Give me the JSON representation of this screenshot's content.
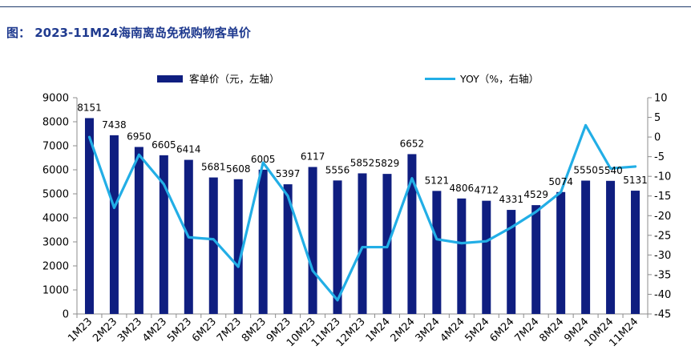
{
  "figure": {
    "title": "图： 2023-11M24海南离岛免税购物客单价"
  },
  "chart_data": {
    "type": "bar",
    "categories": [
      "1M23",
      "2M23",
      "3M23",
      "4M23",
      "5M23",
      "6M23",
      "7M23",
      "8M23",
      "9M23",
      "10M23",
      "11M23",
      "12M23",
      "1M24",
      "2M24",
      "3M24",
      "4M24",
      "5M24",
      "6M24",
      "7M24",
      "8M24",
      "9M24",
      "10M24",
      "11M24"
    ],
    "series": [
      {
        "name": "客单价（元，左轴）",
        "type": "bar",
        "axis": "left",
        "color": "#0f1e80",
        "values": [
          8151,
          7438,
          6950,
          6605,
          6414,
          5681,
          5608,
          6005,
          5397,
          6117,
          5556,
          5852,
          5829,
          6652,
          5121,
          4806,
          4712,
          4331,
          4529,
          5074,
          5550,
          5540,
          5131
        ]
      },
      {
        "name": "YOY（%，右轴）",
        "type": "line",
        "axis": "right",
        "color": "#22aee6",
        "values": [
          0,
          -18,
          -4.5,
          -12,
          -25.5,
          -26,
          -33,
          -6.5,
          -15,
          -34,
          -41.5,
          -28,
          -28,
          -10.5,
          -26,
          -27,
          -26.5,
          -23,
          -19,
          -14,
          3,
          -8,
          -7.5
        ]
      }
    ],
    "y_left": {
      "min": 0,
      "max": 9000,
      "step": 1000,
      "ticks": [
        "0",
        "1000",
        "2000",
        "3000",
        "4000",
        "5000",
        "6000",
        "7000",
        "8000",
        "9000"
      ]
    },
    "y_right": {
      "min": -45,
      "max": 10,
      "step": 5,
      "ticks": [
        "-45",
        "-40",
        "-35",
        "-30",
        "-25",
        "-20",
        "-15",
        "-10",
        "-5",
        "0",
        "5",
        "10"
      ]
    },
    "legend_position": "top-center",
    "grid": false
  }
}
